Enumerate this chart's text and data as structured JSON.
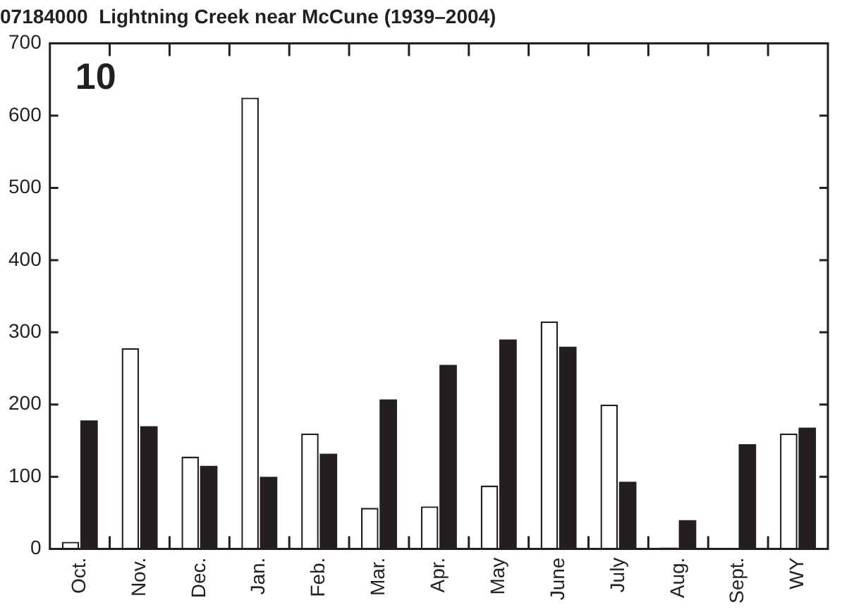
{
  "chart_data": {
    "type": "bar",
    "title": "07184000  Lightning Creek near McCune (1939–2004)",
    "categories": [
      "Oct.",
      "Nov.",
      "Dec.",
      "Jan.",
      "Feb.",
      "Mar.",
      "Apr.",
      "May",
      "June",
      "July",
      "Aug.",
      "Sept.",
      "WY"
    ],
    "series": [
      {
        "color": "#ffffff",
        "values": [
          10,
          278,
          128,
          625,
          160,
          57,
          59,
          88,
          315,
          200,
          2,
          0,
          160
        ]
      },
      {
        "color": "#231f20",
        "values": [
          178,
          170,
          115,
          100,
          132,
          207,
          255,
          290,
          280,
          93,
          40,
          145,
          168
        ]
      }
    ],
    "ylim": [
      0,
      700
    ],
    "yticks": [
      0,
      100,
      200,
      300,
      400,
      500,
      600,
      700
    ],
    "grid": false,
    "legend": false,
    "annotations": [
      "10"
    ]
  }
}
